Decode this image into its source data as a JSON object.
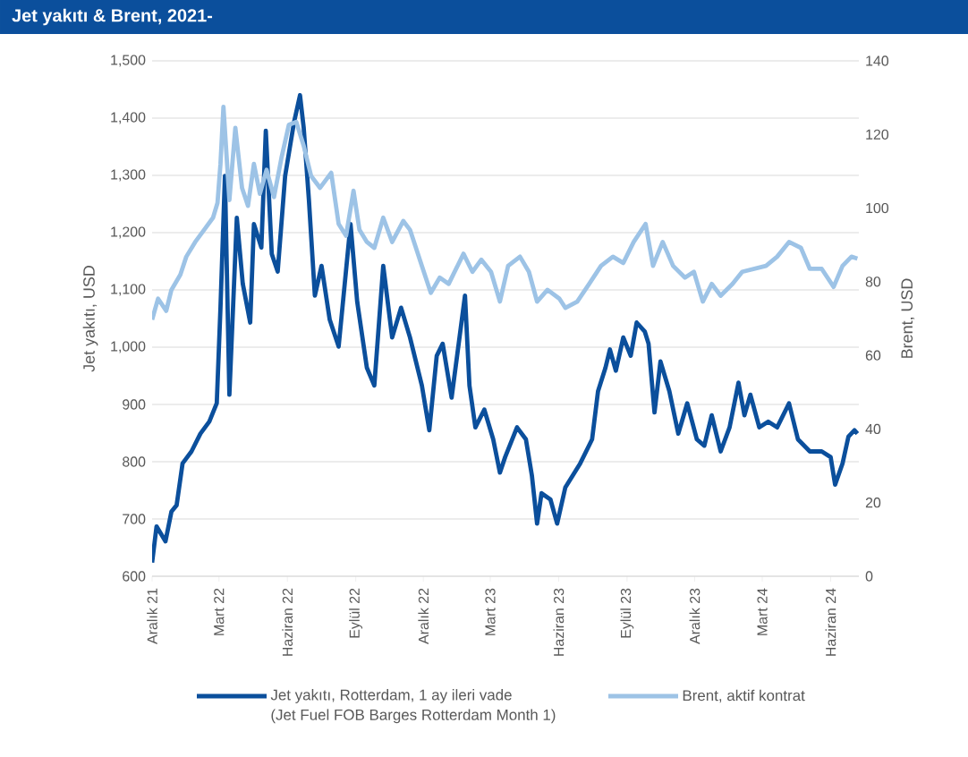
{
  "chart_data": {
    "type": "line",
    "title": "Jet yakıtı & Brent, 2021-",
    "ylabel": "Jet yakıtı, USD",
    "y2label": "Brent, USD",
    "xlim": [
      "2021-12-01",
      "2024-07-09"
    ],
    "xticks": [
      {
        "value": "2021-12-01",
        "label": "Aralık 21"
      },
      {
        "value": "2022-03-01",
        "label": "Mart 22"
      },
      {
        "value": "2022-06-01",
        "label": "Haziran 22"
      },
      {
        "value": "2022-09-01",
        "label": "Eylül 22"
      },
      {
        "value": "2022-12-01",
        "label": "Aralık 22"
      },
      {
        "value": "2023-03-01",
        "label": "Mart 23"
      },
      {
        "value": "2023-06-01",
        "label": "Haziran 23"
      },
      {
        "value": "2023-09-01",
        "label": "Eylül 23"
      },
      {
        "value": "2023-12-01",
        "label": "Aralık 23"
      },
      {
        "value": "2024-03-01",
        "label": "Mart 24"
      },
      {
        "value": "2024-06-01",
        "label": "Haziran 24"
      }
    ],
    "ylim": [
      600,
      1500
    ],
    "yticks": [
      600,
      700,
      800,
      900,
      {
        "value": 1000,
        "label": "1,000"
      },
      {
        "value": 1100,
        "label": "1,100"
      },
      {
        "value": 1200,
        "label": "1,200"
      },
      {
        "value": 1300,
        "label": "1,300"
      },
      {
        "value": 1400,
        "label": "1,400"
      },
      {
        "value": 1500,
        "label": "1,500"
      }
    ],
    "y2lim": [
      0,
      140
    ],
    "y2ticks": [
      0,
      20,
      40,
      60,
      80,
      100,
      120,
      140
    ],
    "grid": "y",
    "legend": "bottom",
    "annotations": [
      "(Jet Fuel FOB Barges Rotterdam Month 1)"
    ],
    "series": [
      {
        "name": "Jet yakıtı, Rotterdam, 1 ay ileri vade",
        "color": "#0b4f9c",
        "x": [
          "2021-12-01",
          "2021-12-07",
          "2021-12-19",
          "2021-12-27",
          "2022-01-03",
          "2022-01-11",
          "2022-01-23",
          "2022-02-04",
          "2022-02-16",
          "2022-02-26",
          "2022-03-03",
          "2022-03-09",
          "2022-03-15",
          "2022-03-25",
          "2022-04-02",
          "2022-04-12",
          "2022-04-17",
          "2022-04-27",
          "2022-05-03",
          "2022-05-11",
          "2022-05-19",
          "2022-05-29",
          "2022-06-10",
          "2022-06-18",
          "2022-06-23",
          "2022-06-30",
          "2022-07-08",
          "2022-07-17",
          "2022-07-28",
          "2022-08-09",
          "2022-08-25",
          "2022-09-03",
          "2022-09-16",
          "2022-09-26",
          "2022-10-08",
          "2022-10-20",
          "2022-11-01",
          "2022-11-13",
          "2022-11-29",
          "2022-12-09",
          "2022-12-19",
          "2022-12-27",
          "2023-01-08",
          "2023-01-26",
          "2023-02-01",
          "2023-02-09",
          "2023-02-21",
          "2023-03-05",
          "2023-03-14",
          "2023-03-21",
          "2023-04-06",
          "2023-04-18",
          "2023-04-26",
          "2023-05-03",
          "2023-05-09",
          "2023-05-21",
          "2023-05-30",
          "2023-06-10",
          "2023-06-20",
          "2023-06-30",
          "2023-07-16",
          "2023-07-24",
          "2023-08-03",
          "2023-08-09",
          "2023-08-17",
          "2023-08-27",
          "2023-09-06",
          "2023-09-14",
          "2023-09-25",
          "2023-09-30",
          "2023-10-08",
          "2023-10-16",
          "2023-10-28",
          "2023-11-09",
          "2023-11-21",
          "2023-12-04",
          "2023-12-14",
          "2023-12-24",
          "2024-01-05",
          "2024-01-17",
          "2024-01-29",
          "2024-02-06",
          "2024-02-14",
          "2024-02-26",
          "2024-03-09",
          "2024-03-21",
          "2024-04-06",
          "2024-04-18",
          "2024-05-04",
          "2024-05-20",
          "2024-06-01",
          "2024-06-07",
          "2024-06-17",
          "2024-06-25",
          "2024-07-03",
          "2024-07-07"
        ],
        "values": [
          624,
          687,
          661,
          713,
          724,
          797,
          818,
          849,
          870,
          902,
          1069,
          1299,
          917,
          1226,
          1111,
          1043,
          1215,
          1174,
          1378,
          1163,
          1132,
          1299,
          1393,
          1440,
          1383,
          1257,
          1090,
          1142,
          1048,
          1001,
          1215,
          1079,
          964,
          933,
          1142,
          1017,
          1069,
          1017,
          933,
          855,
          985,
          1006,
          912,
          1090,
          933,
          860,
          891,
          839,
          781,
          808,
          860,
          839,
          776,
          692,
          745,
          734,
          692,
          755,
          776,
          797,
          839,
          923,
          964,
          996,
          959,
          1017,
          985,
          1043,
          1027,
          1006,
          886,
          975,
          923,
          849,
          902,
          839,
          828,
          881,
          818,
          860,
          938,
          881,
          917,
          860,
          870,
          860,
          902,
          839,
          818,
          818,
          808,
          760,
          797,
          844,
          855,
          849
        ]
      },
      {
        "name": "Brent, aktif kontrat",
        "color": "#9dc3e6",
        "axis": "y2",
        "x": [
          "2021-12-01",
          "2021-12-09",
          "2021-12-20",
          "2021-12-27",
          "2022-01-08",
          "2022-01-16",
          "2022-01-28",
          "2022-02-09",
          "2022-02-21",
          "2022-02-27",
          "2022-03-03",
          "2022-03-07",
          "2022-03-15",
          "2022-03-23",
          "2022-04-01",
          "2022-04-09",
          "2022-04-17",
          "2022-04-25",
          "2022-05-04",
          "2022-05-14",
          "2022-05-24",
          "2022-06-03",
          "2022-06-13",
          "2022-06-23",
          "2022-07-03",
          "2022-07-15",
          "2022-07-30",
          "2022-08-09",
          "2022-08-19",
          "2022-08-29",
          "2022-09-06",
          "2022-09-16",
          "2022-09-26",
          "2022-10-08",
          "2022-10-20",
          "2022-11-04",
          "2022-11-13",
          "2022-11-29",
          "2022-12-11",
          "2022-12-23",
          "2023-01-04",
          "2023-01-24",
          "2023-02-05",
          "2023-02-17",
          "2023-03-02",
          "2023-03-14",
          "2023-03-25",
          "2023-04-10",
          "2023-04-22",
          "2023-05-03",
          "2023-05-17",
          "2023-06-02",
          "2023-06-10",
          "2023-06-26",
          "2023-07-12",
          "2023-07-28",
          "2023-08-13",
          "2023-08-27",
          "2023-09-10",
          "2023-09-26",
          "2023-10-06",
          "2023-10-19",
          "2023-11-02",
          "2023-11-18",
          "2023-11-30",
          "2023-12-12",
          "2023-12-24",
          "2024-01-05",
          "2024-01-21",
          "2024-02-03",
          "2024-02-19",
          "2024-03-06",
          "2024-03-21",
          "2024-04-06",
          "2024-04-22",
          "2024-05-04",
          "2024-05-20",
          "2024-06-05",
          "2024-06-17",
          "2024-06-29",
          "2024-07-07"
        ],
        "values": [
          69.7,
          75.4,
          72.1,
          77.8,
          81.9,
          86.8,
          90.8,
          94.1,
          97.4,
          101.4,
          112.0,
          127.5,
          102.2,
          121.8,
          105.5,
          100.6,
          112.0,
          103.9,
          110.4,
          103.0,
          113.6,
          122.6,
          123.4,
          116.9,
          108.7,
          105.5,
          109.6,
          95.7,
          92.5,
          104.7,
          94.1,
          90.8,
          89.2,
          97.4,
          90.8,
          96.5,
          94.1,
          84.3,
          77.0,
          81.1,
          79.4,
          87.6,
          82.7,
          86.0,
          82.7,
          74.6,
          84.3,
          86.8,
          82.7,
          74.6,
          77.8,
          75.4,
          72.9,
          74.6,
          79.4,
          84.3,
          86.8,
          85.1,
          90.8,
          95.7,
          84.3,
          90.8,
          84.3,
          81.1,
          82.7,
          74.6,
          79.4,
          76.2,
          79.4,
          82.7,
          83.5,
          84.3,
          86.8,
          90.8,
          89.2,
          83.5,
          83.5,
          78.6,
          84.3,
          86.8,
          86.3
        ]
      }
    ]
  }
}
